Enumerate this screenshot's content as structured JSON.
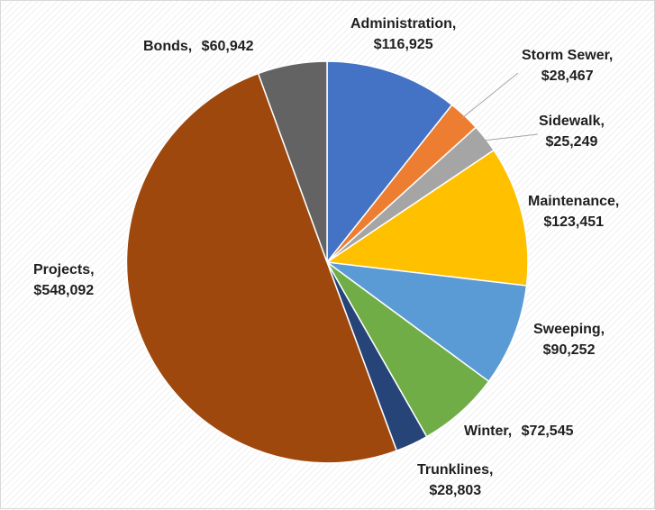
{
  "chart_data": {
    "type": "pie",
    "title": "",
    "categories": [
      "Administration",
      "Storm Sewer",
      "Sidewalk",
      "Maintenance",
      "Sweeping",
      "Winter",
      "Trunklines",
      "Projects",
      "Bonds"
    ],
    "values": [
      116925,
      28467,
      25249,
      123451,
      90252,
      72545,
      28803,
      548092,
      60942
    ],
    "colors": [
      "#4472C4",
      "#ED7D31",
      "#A5A5A5",
      "#FFC000",
      "#5B9BD5",
      "#70AD47",
      "#264478",
      "#9E480E",
      "#636363"
    ],
    "legend": "none",
    "data_labels": [
      {
        "category": "Administration,",
        "value": "$116,925"
      },
      {
        "category": "Storm Sewer,",
        "value": "$28,467"
      },
      {
        "category": "Sidewalk,",
        "value": "$25,249"
      },
      {
        "category": "Maintenance,",
        "value": "$123,451"
      },
      {
        "category": "Sweeping,",
        "value": "$90,252"
      },
      {
        "category": "Winter,",
        "value": "$72,545"
      },
      {
        "category": "Trunklines,",
        "value": "$28,803"
      },
      {
        "category": "Projects,",
        "value": "$548,092"
      },
      {
        "category": "Bonds,",
        "value": "$60,942"
      }
    ]
  }
}
